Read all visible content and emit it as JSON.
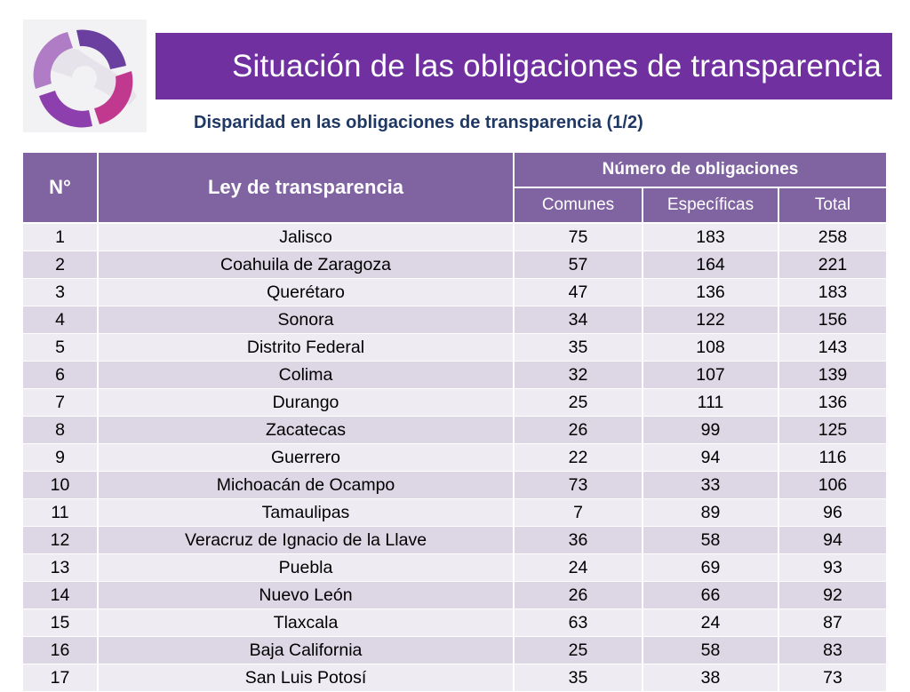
{
  "title": "Situación de las obligaciones de transparencia",
  "subtitle": "Disparidad en las obligaciones de transparencia (1/2)",
  "logo_icon": "swirl-logo-icon",
  "colors": {
    "title_bar": "#7030a0",
    "header": "#8064a2",
    "row_odd": "#eeebf2",
    "row_even": "#dcd6e5",
    "subtitle": "#1f3864"
  },
  "table": {
    "headers": {
      "no": "N°",
      "ley": "Ley de transparencia",
      "group": "Número de obligaciones",
      "comunes": "Comunes",
      "especificas": "Específicas",
      "total": "Total"
    },
    "rows": [
      {
        "no": "1",
        "ley": "Jalisco",
        "comunes": "75",
        "especificas": "183",
        "total": "258"
      },
      {
        "no": "2",
        "ley": "Coahuila de Zaragoza",
        "comunes": "57",
        "especificas": "164",
        "total": "221"
      },
      {
        "no": "3",
        "ley": "Querétaro",
        "comunes": "47",
        "especificas": "136",
        "total": "183"
      },
      {
        "no": "4",
        "ley": "Sonora",
        "comunes": "34",
        "especificas": "122",
        "total": "156"
      },
      {
        "no": "5",
        "ley": "Distrito Federal",
        "comunes": "35",
        "especificas": "108",
        "total": "143"
      },
      {
        "no": "6",
        "ley": "Colima",
        "comunes": "32",
        "especificas": "107",
        "total": "139"
      },
      {
        "no": "7",
        "ley": "Durango",
        "comunes": "25",
        "especificas": "111",
        "total": "136"
      },
      {
        "no": "8",
        "ley": "Zacatecas",
        "comunes": "26",
        "especificas": "99",
        "total": "125"
      },
      {
        "no": "9",
        "ley": "Guerrero",
        "comunes": "22",
        "especificas": "94",
        "total": "116"
      },
      {
        "no": "10",
        "ley": "Michoacán de Ocampo",
        "comunes": "73",
        "especificas": "33",
        "total": "106"
      },
      {
        "no": "11",
        "ley": "Tamaulipas",
        "comunes": "7",
        "especificas": "89",
        "total": "96"
      },
      {
        "no": "12",
        "ley": "Veracruz de Ignacio de la Llave",
        "comunes": "36",
        "especificas": "58",
        "total": "94"
      },
      {
        "no": "13",
        "ley": "Puebla",
        "comunes": "24",
        "especificas": "69",
        "total": "93"
      },
      {
        "no": "14",
        "ley": "Nuevo León",
        "comunes": "26",
        "especificas": "66",
        "total": "92"
      },
      {
        "no": "15",
        "ley": "Tlaxcala",
        "comunes": "63",
        "especificas": "24",
        "total": "87"
      },
      {
        "no": "16",
        "ley": "Baja California",
        "comunes": "25",
        "especificas": "58",
        "total": "83"
      },
      {
        "no": "17",
        "ley": "San Luis Potosí",
        "comunes": "35",
        "especificas": "38",
        "total": "73"
      }
    ]
  }
}
